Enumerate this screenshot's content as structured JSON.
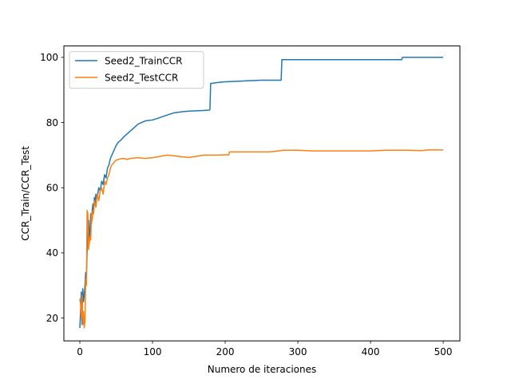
{
  "chart_data": {
    "type": "line",
    "title": "",
    "xlabel": "Numero de iteraciones",
    "ylabel": "CCR_Train/CCR_Test",
    "xlim": [
      -22,
      523
    ],
    "ylim": [
      13,
      103.5
    ],
    "xticks": [
      0,
      100,
      200,
      300,
      400,
      500
    ],
    "yticks": [
      20,
      40,
      60,
      80,
      100
    ],
    "grid": false,
    "legend": "top-left",
    "series": [
      {
        "name": "Seed2_TrainCCR",
        "color": "#1f77b4",
        "points": [
          [
            0,
            17
          ],
          [
            1,
            22
          ],
          [
            2,
            28
          ],
          [
            3,
            18
          ],
          [
            4,
            29
          ],
          [
            5,
            25
          ],
          [
            6,
            27
          ],
          [
            7,
            30
          ],
          [
            8,
            34
          ],
          [
            9,
            32
          ],
          [
            10,
            41
          ],
          [
            11,
            45
          ],
          [
            12,
            50
          ],
          [
            13,
            44
          ],
          [
            14,
            47
          ],
          [
            15,
            52
          ],
          [
            16,
            49
          ],
          [
            17,
            53
          ],
          [
            18,
            55
          ],
          [
            19,
            53
          ],
          [
            20,
            57
          ],
          [
            21,
            55
          ],
          [
            22,
            58
          ],
          [
            24,
            57
          ],
          [
            26,
            60
          ],
          [
            28,
            59
          ],
          [
            30,
            62
          ],
          [
            32,
            61
          ],
          [
            34,
            64
          ],
          [
            36,
            63
          ],
          [
            38,
            66
          ],
          [
            40,
            67
          ],
          [
            42,
            69
          ],
          [
            44,
            70
          ],
          [
            46,
            71
          ],
          [
            48,
            72
          ],
          [
            50,
            73
          ],
          [
            53,
            74
          ],
          [
            56,
            74.5
          ],
          [
            60,
            75.5
          ],
          [
            65,
            76.5
          ],
          [
            70,
            77.5
          ],
          [
            75,
            78.5
          ],
          [
            80,
            79.5
          ],
          [
            85,
            80
          ],
          [
            90,
            80.5
          ],
          [
            100,
            80.8
          ],
          [
            110,
            81.5
          ],
          [
            120,
            82.3
          ],
          [
            130,
            83
          ],
          [
            140,
            83.3
          ],
          [
            150,
            83.5
          ],
          [
            160,
            83.6
          ],
          [
            170,
            83.7
          ],
          [
            178,
            83.8
          ],
          [
            179,
            84
          ],
          [
            180,
            92
          ],
          [
            190,
            92.3
          ],
          [
            200,
            92.5
          ],
          [
            210,
            92.6
          ],
          [
            220,
            92.7
          ],
          [
            230,
            92.8
          ],
          [
            240,
            92.9
          ],
          [
            250,
            93
          ],
          [
            277,
            93
          ],
          [
            278,
            99.3
          ],
          [
            300,
            99.3
          ],
          [
            350,
            99.3
          ],
          [
            400,
            99.3
          ],
          [
            443,
            99.3
          ],
          [
            444,
            100
          ],
          [
            470,
            100
          ],
          [
            500,
            100
          ]
        ]
      },
      {
        "name": "Seed2_TestCCR",
        "color": "#ff7f0e",
        "points": [
          [
            0,
            26
          ],
          [
            1,
            24
          ],
          [
            2,
            20
          ],
          [
            3,
            27
          ],
          [
            4,
            18
          ],
          [
            5,
            22
          ],
          [
            6,
            17
          ],
          [
            7,
            19
          ],
          [
            8,
            32
          ],
          [
            9,
            30
          ],
          [
            10,
            53
          ],
          [
            11,
            52
          ],
          [
            12,
            41
          ],
          [
            13,
            43
          ],
          [
            14,
            45
          ],
          [
            15,
            44
          ],
          [
            16,
            52
          ],
          [
            17,
            50
          ],
          [
            18,
            53
          ],
          [
            19,
            52
          ],
          [
            20,
            56
          ],
          [
            22,
            54
          ],
          [
            24,
            58
          ],
          [
            26,
            56
          ],
          [
            28,
            59
          ],
          [
            30,
            60
          ],
          [
            32,
            58
          ],
          [
            34,
            62
          ],
          [
            36,
            61
          ],
          [
            38,
            63
          ],
          [
            40,
            64
          ],
          [
            42,
            66
          ],
          [
            44,
            67
          ],
          [
            46,
            67.5
          ],
          [
            50,
            68.5
          ],
          [
            55,
            68.8
          ],
          [
            60,
            69
          ],
          [
            65,
            68.7
          ],
          [
            70,
            69
          ],
          [
            80,
            69.2
          ],
          [
            90,
            69
          ],
          [
            100,
            69.2
          ],
          [
            110,
            69.6
          ],
          [
            120,
            70
          ],
          [
            130,
            69.8
          ],
          [
            140,
            69.5
          ],
          [
            150,
            69.3
          ],
          [
            160,
            69.6
          ],
          [
            170,
            70
          ],
          [
            180,
            70
          ],
          [
            190,
            70
          ],
          [
            200,
            70.1
          ],
          [
            205,
            70.1
          ],
          [
            206,
            71
          ],
          [
            230,
            71
          ],
          [
            260,
            71
          ],
          [
            270,
            71.2
          ],
          [
            280,
            71.5
          ],
          [
            300,
            71.5
          ],
          [
            320,
            71.3
          ],
          [
            350,
            71.3
          ],
          [
            380,
            71.3
          ],
          [
            400,
            71.3
          ],
          [
            420,
            71.5
          ],
          [
            450,
            71.5
          ],
          [
            470,
            71.4
          ],
          [
            480,
            71.6
          ],
          [
            500,
            71.6
          ]
        ]
      }
    ]
  }
}
